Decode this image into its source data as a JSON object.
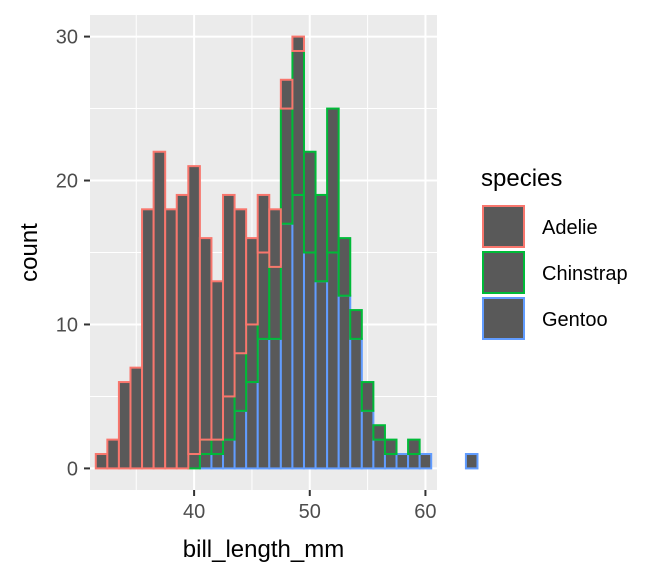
{
  "chart_data": {
    "type": "bar",
    "subtype": "stacked-histogram-outline",
    "xlabel": "bill_length_mm",
    "ylabel": "count",
    "xlim": [
      31.0,
      61.0
    ],
    "ylim": [
      -1.5,
      31.5
    ],
    "grid": true,
    "legend_position": "right",
    "x_ticks": [
      40,
      50,
      60
    ],
    "y_ticks": [
      0,
      10,
      20,
      30
    ],
    "bin_width": 1.0,
    "bin_start": 32.0,
    "legend": {
      "title": "species",
      "entries": [
        {
          "label": "Adelie",
          "color": "#F8766D"
        },
        {
          "label": "Chinstrap",
          "color": "#00BA38"
        },
        {
          "label": "Gentoo",
          "color": "#619CFF"
        }
      ]
    },
    "fill_color": "#595959",
    "panel_background": "#EBEBEB",
    "gridline_color": "#FFFFFF",
    "series": [
      {
        "name": "Gentoo",
        "color": "#619CFF",
        "values": [
          0,
          0,
          0,
          0,
          0,
          0,
          0,
          0,
          0,
          1,
          1,
          2,
          4,
          6,
          9,
          9,
          17,
          19,
          15,
          13,
          15,
          12,
          9,
          4,
          2,
          1,
          1,
          1,
          1,
          0,
          0,
          0,
          1,
          0,
          0,
          0,
          0,
          0
        ]
      },
      {
        "name": "Chinstrap",
        "color": "#00BA38",
        "values": [
          0,
          0,
          0,
          0,
          0,
          0,
          0,
          0,
          1,
          1,
          1,
          3,
          4,
          4,
          6,
          5,
          8,
          10,
          7,
          6,
          10,
          4,
          2,
          2,
          1,
          1,
          0,
          1,
          0,
          0,
          0,
          0,
          0,
          0,
          0,
          0,
          0,
          0
        ]
      },
      {
        "name": "Adelie",
        "color": "#F8766D",
        "values": [
          1,
          2,
          6,
          7,
          18,
          22,
          18,
          19,
          20,
          14,
          11,
          14,
          10,
          6,
          4,
          4,
          2,
          1,
          0,
          0,
          0,
          0,
          0,
          0,
          0,
          0,
          0,
          0,
          0,
          0,
          0,
          0,
          0,
          0,
          0,
          0,
          0,
          0
        ]
      }
    ]
  }
}
